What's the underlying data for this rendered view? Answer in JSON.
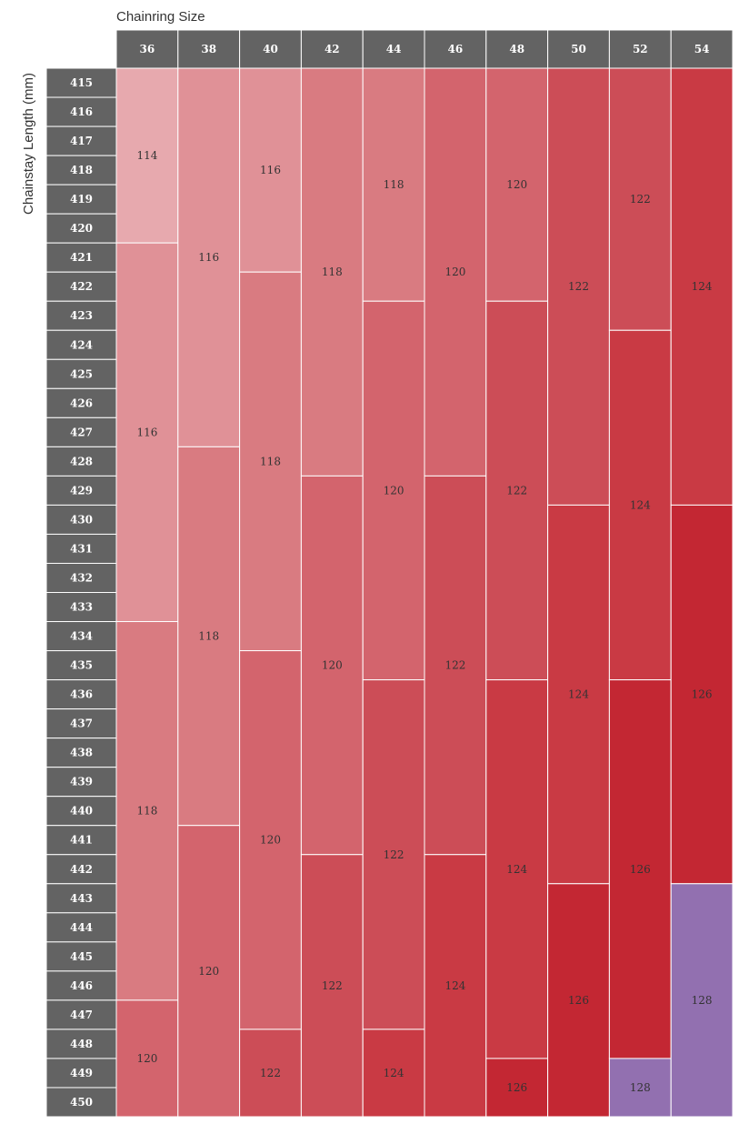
{
  "chart_data": {
    "type": "table",
    "xlabel": "Chainring Size",
    "ylabel": "Chainstay Length (mm)",
    "chainrings": [
      36,
      38,
      40,
      42,
      44,
      46,
      48,
      50,
      52,
      54
    ],
    "chainstays": [
      415,
      416,
      417,
      418,
      419,
      420,
      421,
      422,
      423,
      424,
      425,
      426,
      427,
      428,
      429,
      430,
      431,
      432,
      433,
      434,
      435,
      436,
      437,
      438,
      439,
      440,
      441,
      442,
      443,
      444,
      445,
      446,
      447,
      448,
      449,
      450
    ],
    "columns": [
      {
        "chainring": 36,
        "segments": [
          {
            "from": 415,
            "to": 420,
            "value": 114
          },
          {
            "from": 421,
            "to": 433,
            "value": 116
          },
          {
            "from": 434,
            "to": 446,
            "value": 118
          },
          {
            "from": 447,
            "to": 450,
            "value": 120
          }
        ]
      },
      {
        "chainring": 38,
        "segments": [
          {
            "from": 415,
            "to": 427,
            "value": 116
          },
          {
            "from": 428,
            "to": 440,
            "value": 118
          },
          {
            "from": 441,
            "to": 450,
            "value": 120
          }
        ]
      },
      {
        "chainring": 40,
        "segments": [
          {
            "from": 415,
            "to": 421,
            "value": 116
          },
          {
            "from": 422,
            "to": 434,
            "value": 118
          },
          {
            "from": 435,
            "to": 447,
            "value": 120
          },
          {
            "from": 448,
            "to": 450,
            "value": 122
          }
        ]
      },
      {
        "chainring": 42,
        "segments": [
          {
            "from": 415,
            "to": 428,
            "value": 118
          },
          {
            "from": 429,
            "to": 441,
            "value": 120
          },
          {
            "from": 442,
            "to": 450,
            "value": 122
          }
        ]
      },
      {
        "chainring": 44,
        "segments": [
          {
            "from": 415,
            "to": 422,
            "value": 118
          },
          {
            "from": 423,
            "to": 435,
            "value": 120
          },
          {
            "from": 436,
            "to": 447,
            "value": 122
          },
          {
            "from": 448,
            "to": 450,
            "value": 124
          }
        ]
      },
      {
        "chainring": 46,
        "segments": [
          {
            "from": 415,
            "to": 428,
            "value": 120
          },
          {
            "from": 429,
            "to": 441,
            "value": 122
          },
          {
            "from": 442,
            "to": 450,
            "value": 124
          }
        ]
      },
      {
        "chainring": 48,
        "segments": [
          {
            "from": 415,
            "to": 422,
            "value": 120
          },
          {
            "from": 423,
            "to": 435,
            "value": 122
          },
          {
            "from": 436,
            "to": 448,
            "value": 124
          },
          {
            "from": 449,
            "to": 450,
            "value": 126
          }
        ]
      },
      {
        "chainring": 50,
        "segments": [
          {
            "from": 415,
            "to": 429,
            "value": 122
          },
          {
            "from": 430,
            "to": 442,
            "value": 124
          },
          {
            "from": 443,
            "to": 450,
            "value": 126
          }
        ]
      },
      {
        "chainring": 52,
        "segments": [
          {
            "from": 415,
            "to": 423,
            "value": 122
          },
          {
            "from": 424,
            "to": 435,
            "value": 124
          },
          {
            "from": 436,
            "to": 448,
            "value": 126
          },
          {
            "from": 449,
            "to": 450,
            "value": 128
          }
        ]
      },
      {
        "chainring": 54,
        "segments": [
          {
            "from": 415,
            "to": 429,
            "value": 124
          },
          {
            "from": 430,
            "to": 442,
            "value": 126
          },
          {
            "from": 443,
            "to": 450,
            "value": 128
          }
        ]
      }
    ],
    "value_colors": {
      "114": "#E7A9AE",
      "116": "#E09197",
      "118": "#D97B81",
      "120": "#D3646D",
      "122": "#CC4D57",
      "124": "#C93A44",
      "126": "#C32733",
      "128": "#9270B0"
    },
    "header_color": "#636363",
    "header_text_color": "#FFFFFF",
    "grid": false,
    "legend": "none"
  }
}
